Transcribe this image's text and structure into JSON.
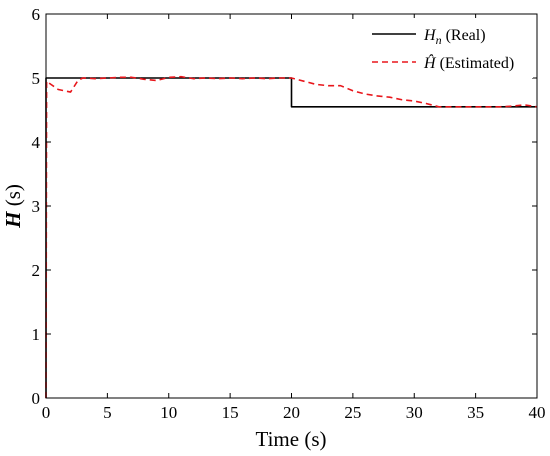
{
  "chart_data": {
    "type": "line",
    "xlabel": "Time (s)",
    "ylabel": "H (s)",
    "xlim": [
      0,
      40
    ],
    "ylim": [
      0,
      6
    ],
    "xticks": [
      "0",
      "5",
      "10",
      "15",
      "20",
      "25",
      "30",
      "35",
      "40"
    ],
    "yticks": [
      "0",
      "1",
      "2",
      "3",
      "4",
      "5",
      "6"
    ],
    "grid": false,
    "legend_position": "top-right",
    "series": [
      {
        "name": "H_n (Real)",
        "legend_main": "H",
        "legend_sub": "n",
        "legend_suffix": " (Real)",
        "style": "solid",
        "color": "#000000",
        "points": [
          [
            0,
            0
          ],
          [
            0,
            5.0
          ],
          [
            20,
            5.0
          ],
          [
            20,
            4.55
          ],
          [
            40,
            4.55
          ]
        ]
      },
      {
        "name": "Ĥ (Estimated)",
        "legend_main": "Ĥ",
        "legend_sub": "",
        "legend_suffix": " (Estimated)",
        "style": "dashed",
        "color": "#e8161b",
        "points": [
          [
            0,
            0
          ],
          [
            0.05,
            4.95
          ],
          [
            0.4,
            4.9
          ],
          [
            1,
            4.82
          ],
          [
            2,
            4.78
          ],
          [
            2.6,
            4.96
          ],
          [
            3,
            5.0
          ],
          [
            4,
            4.99
          ],
          [
            5,
            5.0
          ],
          [
            6,
            5.01
          ],
          [
            7,
            5.01
          ],
          [
            8,
            4.98
          ],
          [
            9,
            4.96
          ],
          [
            10,
            5.01
          ],
          [
            11,
            5.02
          ],
          [
            12,
            4.99
          ],
          [
            13,
            5.0
          ],
          [
            14,
            4.99
          ],
          [
            15,
            5.0
          ],
          [
            16,
            4.99
          ],
          [
            17,
            5.0
          ],
          [
            18,
            4.99
          ],
          [
            19,
            5.0
          ],
          [
            20,
            5.0
          ],
          [
            21,
            4.95
          ],
          [
            22,
            4.9
          ],
          [
            23,
            4.88
          ],
          [
            24,
            4.88
          ],
          [
            25,
            4.8
          ],
          [
            26,
            4.75
          ],
          [
            27,
            4.72
          ],
          [
            28,
            4.7
          ],
          [
            29,
            4.66
          ],
          [
            30,
            4.64
          ],
          [
            31,
            4.6
          ],
          [
            32,
            4.55
          ],
          [
            33,
            4.55
          ],
          [
            34,
            4.55
          ],
          [
            35,
            4.55
          ],
          [
            36,
            4.55
          ],
          [
            37,
            4.55
          ],
          [
            38,
            4.56
          ],
          [
            39,
            4.58
          ],
          [
            40,
            4.55
          ]
        ]
      }
    ]
  }
}
